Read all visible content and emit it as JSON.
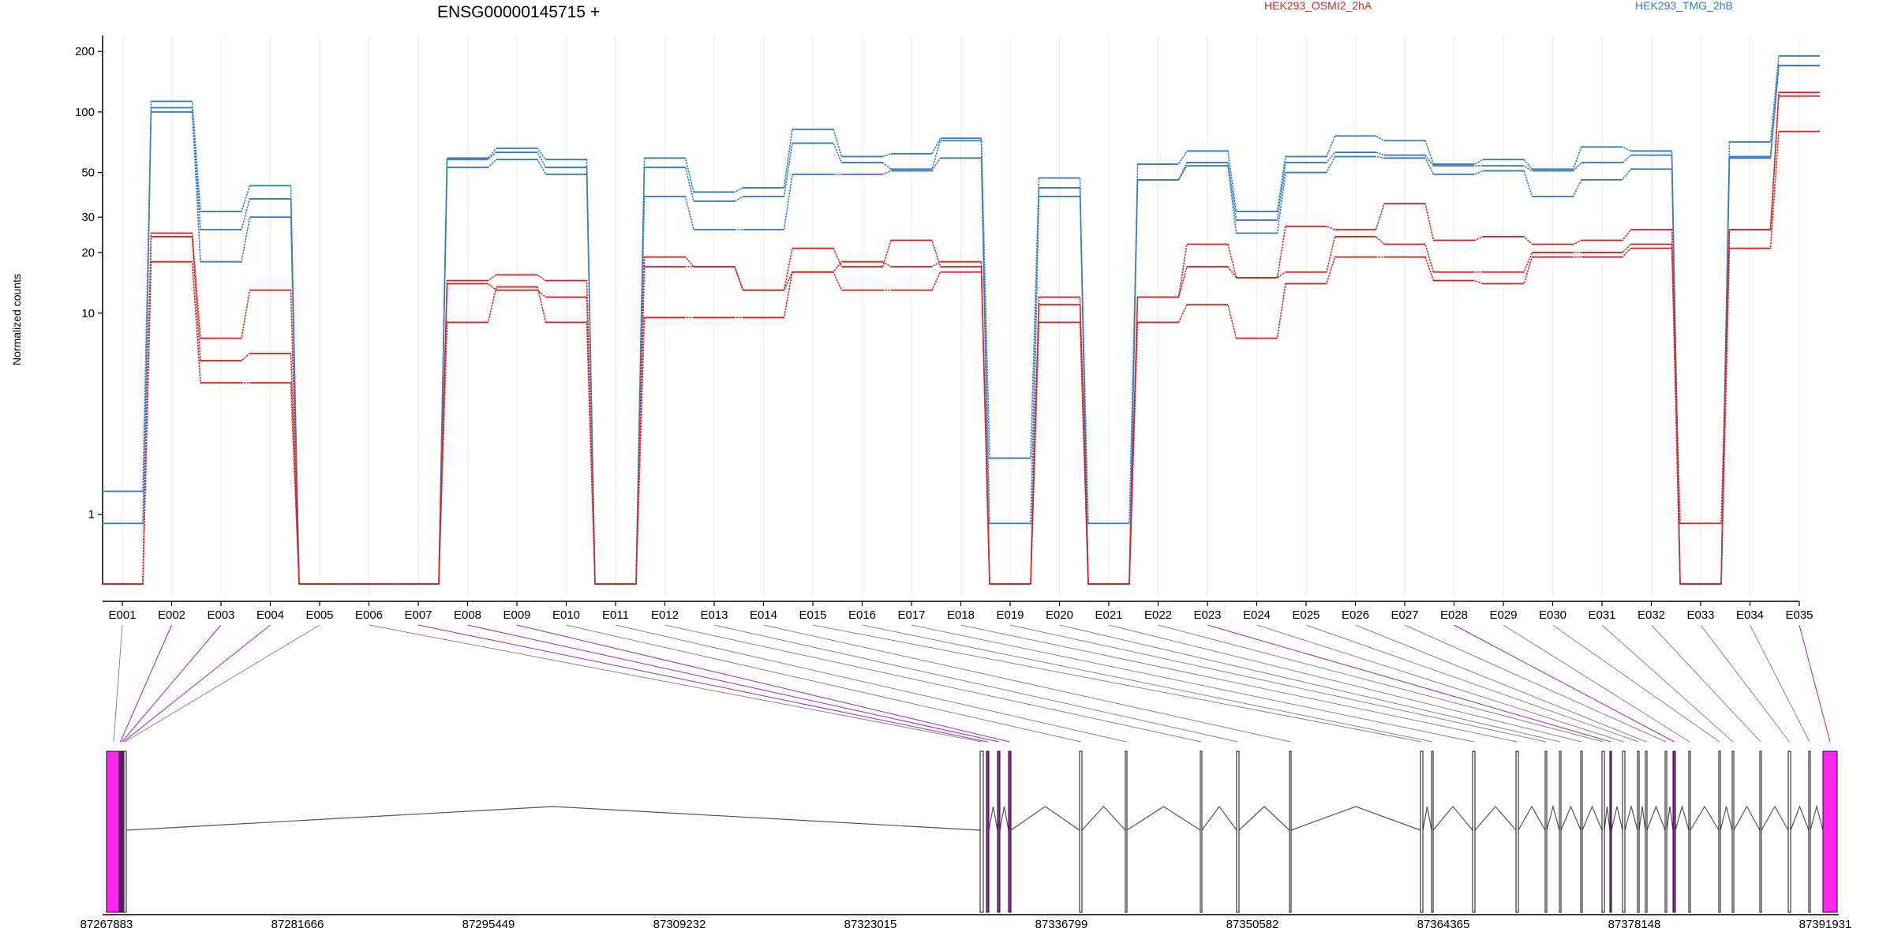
{
  "chart_data": {
    "type": "line",
    "title": "ENSG00000145715 +",
    "ylabel": "Normalized counts",
    "y_scale": "log",
    "ylim": [
      0.45,
      240
    ],
    "y_ticks": [
      1,
      10,
      20,
      30,
      50,
      100,
      200
    ],
    "categories": [
      "E001",
      "E002",
      "E003",
      "E004",
      "E005",
      "E006",
      "E007",
      "E008",
      "E009",
      "E010",
      "E011",
      "E012",
      "E013",
      "E014",
      "E015",
      "E016",
      "E017",
      "E018",
      "E019",
      "E020",
      "E021",
      "E022",
      "E023",
      "E024",
      "E025",
      "E026",
      "E027",
      "E028",
      "E029",
      "E030",
      "E031",
      "E032",
      "E033",
      "E034",
      "E035"
    ],
    "legend": [
      {
        "label": "HEK293_OSMI2_2hA",
        "color": "#d62728"
      },
      {
        "label": "HEK293_TMG_2hB",
        "color": "#3a7bbf"
      }
    ],
    "series": [
      {
        "group": "HEK293_TMG_2hB",
        "color": "#3a7bbf",
        "values": [
          1.3,
          105,
          18,
          30,
          0.45,
          0.45,
          0.45,
          53,
          58,
          49,
          0.45,
          38,
          26,
          26,
          49,
          49,
          51,
          59,
          0.9,
          38,
          0.9,
          46,
          54,
          25,
          50,
          60,
          59,
          49,
          51,
          38,
          46,
          52,
          0.45,
          59,
          170
        ]
      },
      {
        "group": "HEK293_TMG_2hB",
        "color": "#3a7bbf",
        "values": [
          0.9,
          100,
          26,
          37,
          0.45,
          0.45,
          0.45,
          58,
          63,
          53,
          0.45,
          53,
          36,
          38,
          70,
          56,
          52,
          72,
          0.45,
          42,
          0.45,
          46,
          56,
          29,
          56,
          63,
          61,
          54,
          54,
          51,
          56,
          61,
          0.45,
          60,
          170
        ]
      },
      {
        "group": "HEK293_TMG_2hB",
        "color": "#3a7bbf",
        "values": [
          0.45,
          113,
          32,
          43,
          0.45,
          0.45,
          0.45,
          59,
          66,
          58,
          0.45,
          59,
          40,
          42,
          82,
          60,
          62,
          74,
          1.9,
          47,
          0.45,
          55,
          64,
          32,
          60,
          76,
          72,
          55,
          58,
          52,
          67,
          64,
          0.45,
          71,
          190
        ]
      },
      {
        "group": "HEK293_OSMI2_2hA",
        "color": "#d62728",
        "values": [
          0.45,
          25,
          7.5,
          13,
          0.45,
          0.45,
          0.45,
          14,
          13,
          12,
          0.45,
          17,
          17,
          13,
          16,
          18,
          17,
          18,
          0.45,
          12,
          0.45,
          12,
          17,
          15,
          16,
          24,
          22,
          16,
          16,
          20,
          20,
          22,
          0.9,
          26,
          120
        ]
      },
      {
        "group": "HEK293_OSMI2_2hA",
        "color": "#d62728",
        "values": [
          0.45,
          24,
          5.8,
          6.3,
          0.45,
          0.45,
          0.45,
          14.5,
          15.5,
          14.5,
          0.45,
          19,
          17,
          13,
          21,
          17,
          23,
          17,
          0.45,
          11,
          0.45,
          12,
          22,
          15,
          27,
          26,
          35,
          23,
          24,
          22,
          23,
          26,
          0.45,
          26,
          125
        ]
      },
      {
        "group": "HEK293_OSMI2_2hA",
        "color": "#d62728",
        "values": [
          0.45,
          18,
          4.5,
          4.5,
          0.45,
          0.45,
          0.45,
          9,
          13.5,
          9,
          0.45,
          9.5,
          9.5,
          9.5,
          16,
          13,
          13,
          16,
          0.45,
          9,
          0.45,
          9,
          11,
          7.5,
          14,
          19,
          19,
          14.5,
          14,
          19,
          19,
          21,
          0.45,
          21,
          80
        ]
      }
    ]
  },
  "gene_model": {
    "coordinate_ticks": [
      "87267883",
      "87281666",
      "87295449",
      "87309232",
      "87323015",
      "87336799",
      "87350582",
      "87364365",
      "87378148",
      "87391931"
    ],
    "exon_color": "#ff28f0",
    "highlight_color": "#9b2bb5",
    "intron_color": "#555555"
  }
}
